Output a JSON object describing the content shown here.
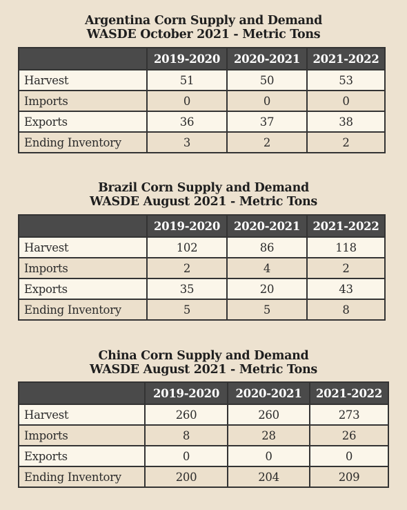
{
  "tables": [
    {
      "title_line1": "Argentina Corn Supply and Demand",
      "title_line2": "WASDE October 2021 - Metric Tons",
      "headers": [
        "",
        "2019-2020",
        "2020-2021",
        "2021-2022"
      ],
      "rows": [
        {
          "label": "Harvest",
          "values": [
            "51",
            "50",
            "53"
          ]
        },
        {
          "label": "Imports",
          "values": [
            "0",
            "0",
            "0"
          ]
        },
        {
          "label": "Exports",
          "values": [
            "36",
            "37",
            "38"
          ]
        },
        {
          "label": "Ending Inventory",
          "values": [
            "3",
            "2",
            "2"
          ]
        }
      ]
    },
    {
      "title_line1": "Brazil Corn Supply and Demand",
      "title_line2": "WASDE August 2021 - Metric Tons",
      "headers": [
        "",
        "2019-2020",
        "2020-2021",
        "2021-2022"
      ],
      "rows": [
        {
          "label": "Harvest",
          "values": [
            "102",
            "86",
            "118"
          ]
        },
        {
          "label": "Imports",
          "values": [
            "2",
            "4",
            "2"
          ]
        },
        {
          "label": "Exports",
          "values": [
            "35",
            "20",
            "43"
          ]
        },
        {
          "label": "Ending Inventory",
          "values": [
            "5",
            "5",
            "8"
          ]
        }
      ]
    },
    {
      "title_line1": "China Corn Supply and Demand",
      "title_line2": "WASDE August 2021 - Metric Tons",
      "headers": [
        "",
        "2019-2020",
        "2020-2021",
        "2021-2022"
      ],
      "rows": [
        {
          "label": "Harvest",
          "values": [
            "260",
            "260",
            "273"
          ]
        },
        {
          "label": "Imports",
          "values": [
            "8",
            "28",
            "26"
          ]
        },
        {
          "label": "Exports",
          "values": [
            "0",
            "0",
            "0"
          ]
        },
        {
          "label": "Ending Inventory",
          "values": [
            "200",
            "204",
            "209"
          ]
        }
      ]
    }
  ]
}
